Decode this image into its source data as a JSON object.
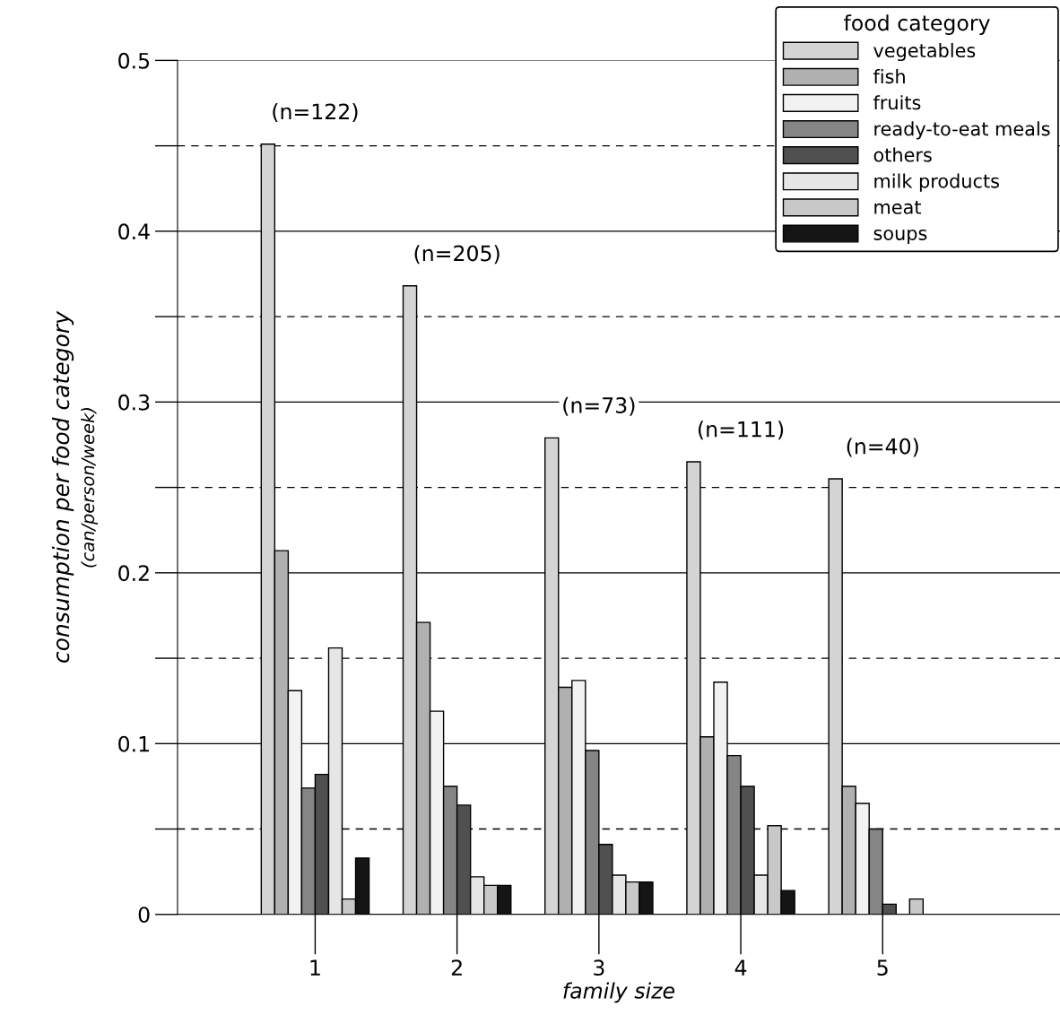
{
  "chart_data": {
    "type": "bar",
    "xlabel": "family size",
    "ylabel": "consumption per food category\n(can/person/week)",
    "legend_title": "food category",
    "categories": [
      "1",
      "2",
      "3",
      "4",
      "5"
    ],
    "series": [
      {
        "name": "vegetables",
        "color": "#d4d4d4",
        "values": [
          0.451,
          0.368,
          0.279,
          0.265,
          0.255
        ]
      },
      {
        "name": "fish",
        "color": "#b0b0b0",
        "values": [
          0.213,
          0.171,
          0.133,
          0.104,
          0.075
        ]
      },
      {
        "name": "fruits",
        "color": "#f2f2f2",
        "values": [
          0.131,
          0.119,
          0.137,
          0.136,
          0.065
        ]
      },
      {
        "name": "ready-to-eat meals",
        "color": "#858585",
        "values": [
          0.074,
          0.075,
          0.096,
          0.093,
          0.05
        ]
      },
      {
        "name": "others",
        "color": "#505050",
        "values": [
          0.082,
          0.064,
          0.041,
          0.075,
          0.006
        ]
      },
      {
        "name": "milk products",
        "color": "#e6e6e6",
        "values": [
          0.156,
          0.022,
          0.023,
          0.023,
          null
        ]
      },
      {
        "name": "meat",
        "color": "#c8c8c8",
        "values": [
          0.009,
          0.017,
          0.019,
          0.052,
          0.009
        ]
      },
      {
        "name": "soups",
        "color": "#151515",
        "values": [
          0.033,
          0.017,
          0.019,
          0.014,
          null
        ]
      }
    ],
    "ylim": [
      0,
      0.5
    ],
    "yticks": [
      0,
      {
        "value": 0.05,
        "label": null
      },
      0.1,
      {
        "value": 0.15,
        "label": null
      },
      0.2,
      {
        "value": 0.25,
        "label": null
      },
      0.3,
      {
        "value": 0.35,
        "label": null
      },
      0.4,
      {
        "value": 0.45,
        "label": null
      },
      0.5
    ],
    "grid": "y",
    "legend": "top right",
    "annotations": [
      "(n=122)",
      "(n=205)",
      "(n=73)",
      "(n=111)",
      "(n=40)"
    ]
  }
}
